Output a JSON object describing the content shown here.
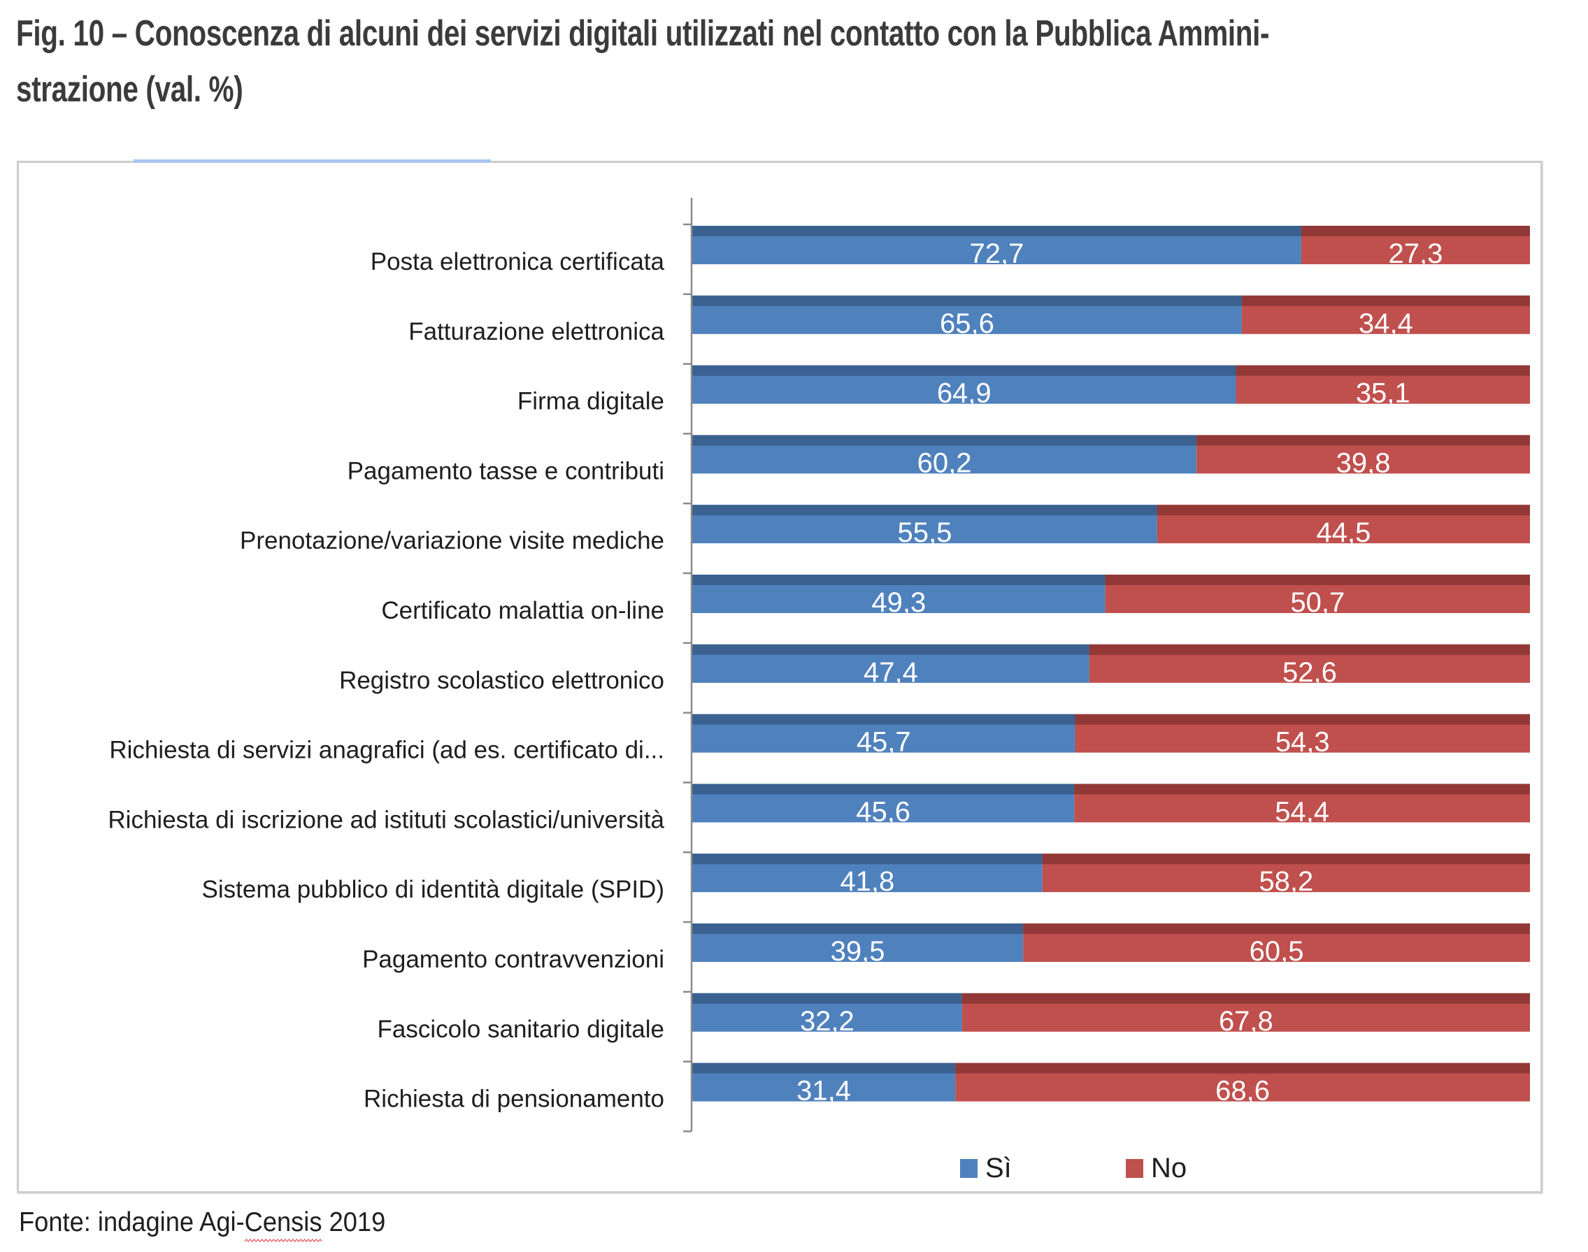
{
  "title": {
    "line1": "Fig. 10 – Conoscenza di alcuni dei servizi digitali utilizzati nel contatto con la Pubblica Ammini-",
    "line2": "strazione (val. %)"
  },
  "source": {
    "prefix": "Fonte: indagine Agi-",
    "flagged_word": "Censis",
    "suffix": " 2019"
  },
  "colors": {
    "si": "#4f81bd",
    "si_top": "#3b6190",
    "no": "#c0504d",
    "no_top": "#923937",
    "frame_accent": "#a9c6ee"
  },
  "chart_data": {
    "type": "bar",
    "orientation": "horizontal",
    "stacked": true,
    "title": "Fig. 10 – Conoscenza di alcuni dei servizi digitali utilizzati nel contatto con la Pubblica Amministrazione (val. %)",
    "xlabel": "",
    "ylabel": "",
    "xlim": [
      0,
      100
    ],
    "grid": false,
    "legend": "bottom",
    "categories": [
      "Posta elettronica certificata",
      "Fatturazione elettronica",
      "Firma digitale",
      "Pagamento tasse e contributi",
      "Prenotazione/variazione visite mediche",
      "Certificato malattia on-line",
      "Registro scolastico elettronico",
      "Richiesta di servizi anagrafici (ad es. certificato di...",
      "Richiesta di iscrizione ad istituti scolastici/università",
      "Sistema pubblico di identità digitale (SPID)",
      "Pagamento contravvenzioni",
      "Fascicolo sanitario digitale",
      "Richiesta di pensionamento"
    ],
    "series": [
      {
        "name": "Sì",
        "values": [
          72.7,
          65.6,
          64.9,
          60.2,
          55.5,
          49.3,
          47.4,
          45.7,
          45.6,
          41.8,
          39.5,
          32.2,
          31.4
        ],
        "labels": [
          "72,7",
          "65,6",
          "64,9",
          "60,2",
          "55,5",
          "49,3",
          "47,4",
          "45,7",
          "45,6",
          "41,8",
          "39,5",
          "32,2",
          "31,4"
        ]
      },
      {
        "name": "No",
        "values": [
          27.3,
          34.4,
          35.1,
          39.8,
          44.5,
          50.7,
          52.6,
          54.3,
          54.4,
          58.2,
          60.5,
          67.8,
          68.6
        ],
        "labels": [
          "27,3",
          "34,4",
          "35,1",
          "39,8",
          "44,5",
          "50,7",
          "52,6",
          "54,3",
          "54,4",
          "58,2",
          "60,5",
          "67,8",
          "68,6"
        ]
      }
    ],
    "source": "Fonte: indagine Agi-Censis 2019"
  }
}
